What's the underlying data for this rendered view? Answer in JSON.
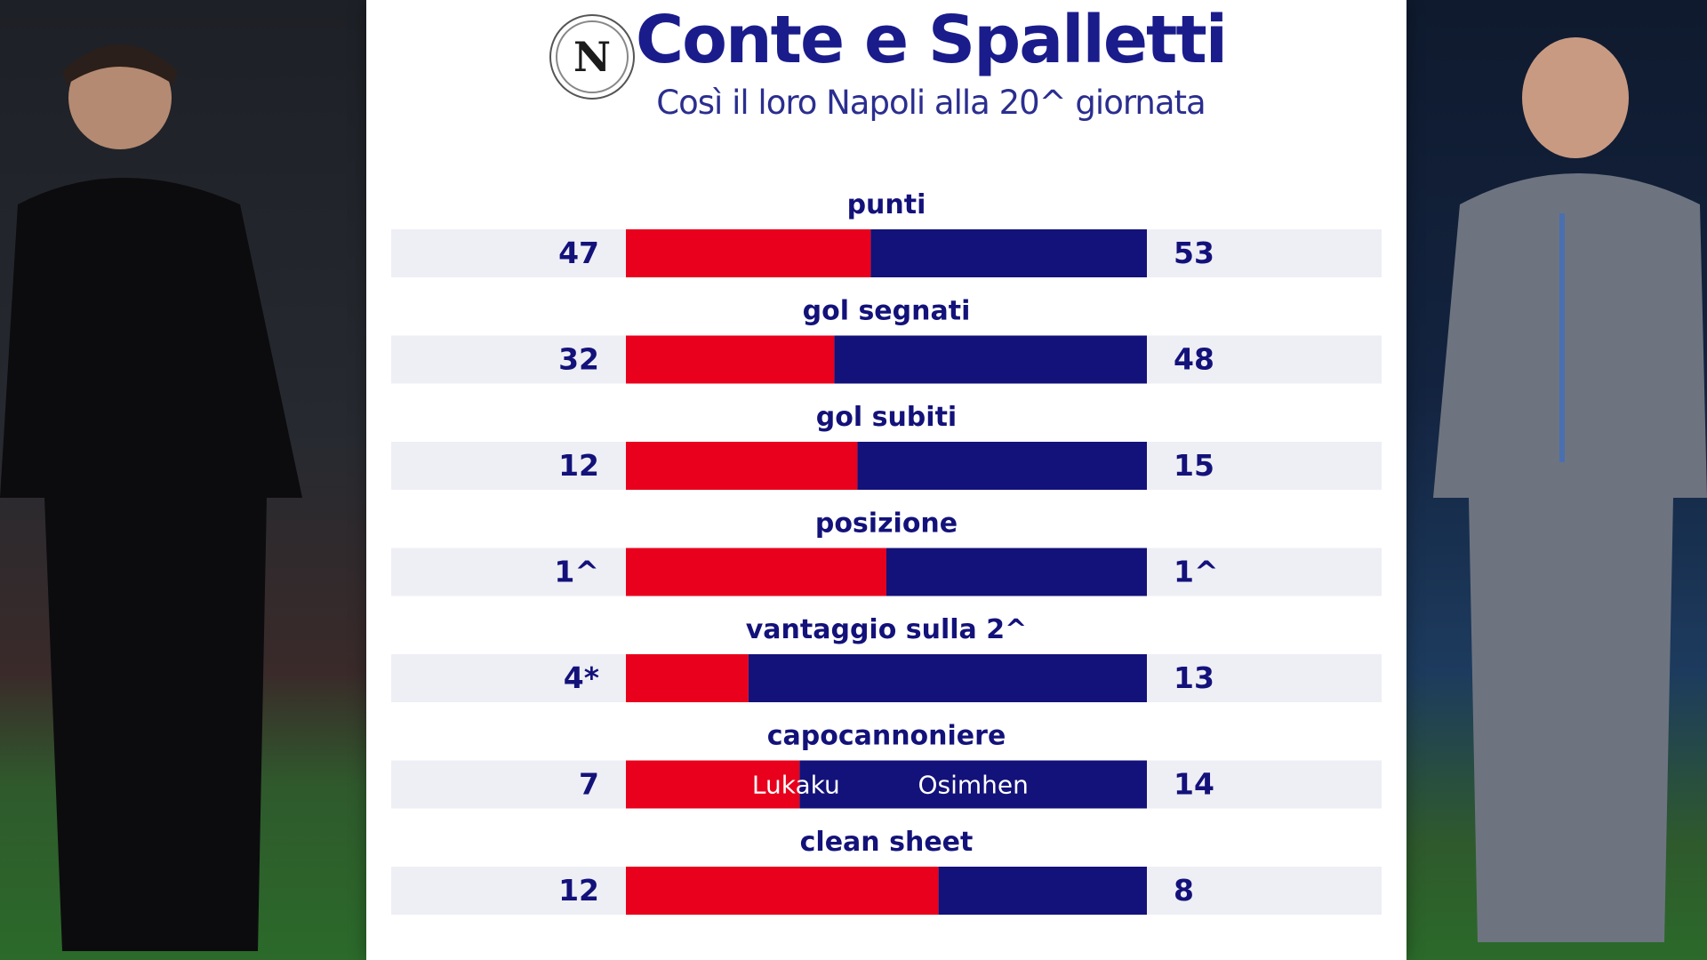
{
  "chart_data": {
    "type": "bar",
    "title": "Conte e Spalletti",
    "subtitle": "Così il loro Napoli alla 20^ giornata",
    "categories": [
      "punti",
      "gol segnati",
      "gol subiti",
      "posizione",
      "vantaggio sulla 2^",
      "capocannoniere",
      "clean sheet"
    ],
    "series": [
      {
        "values": [
          47,
          32,
          12,
          1,
          4,
          7,
          12
        ]
      },
      {
        "values": [
          53,
          48,
          15,
          1,
          13,
          14,
          8
        ]
      }
    ],
    "left_labels": [
      "47",
      "32",
      "12",
      "1^",
      "4*",
      "7",
      "12"
    ],
    "right_labels": [
      "53",
      "48",
      "15",
      "1^",
      "13",
      "14",
      "8"
    ],
    "bar_annotations": [
      {
        "row": 5,
        "left": "Lukaku",
        "right": "Osimhen"
      }
    ],
    "colors": {
      "left": "#e8001c",
      "right": "#13127a",
      "title": "#1a1c8c",
      "stripe": "#eeeef5"
    }
  },
  "badge": {
    "letter": "N"
  }
}
